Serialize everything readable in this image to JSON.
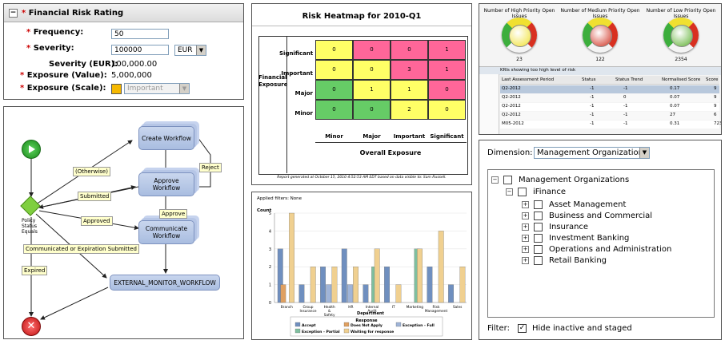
{
  "form": {
    "title": "Financial Risk Rating",
    "toggle": "−",
    "frequency_label": "Frequency:",
    "frequency_value": "50",
    "severity_label": "Severity:",
    "severity_value": "100000",
    "currency": "EUR",
    "severity_eur_label": "Severity (EUR):",
    "severity_eur_value": "100,000.00",
    "exposure_value_label": "Exposure (Value):",
    "exposure_value": "5,000,000",
    "exposure_scale_label": "Exposure (Scale):",
    "exposure_scale": "Important",
    "exposure_scale_color": "#f5b800"
  },
  "workflow": {
    "nodes": {
      "create": "Create Workflow",
      "approve": "Approve Workflow",
      "communicate": "Communicate Workflow",
      "monitor": "EXTERNAL_MONITOR_WORKFLOW",
      "decision": "Policy Status Equals"
    },
    "labels": {
      "otherwise": "(Otherwise)",
      "submitted": "Submitted",
      "approved": "Approved",
      "reject": "Reject",
      "approve": "Approve",
      "comm_or_exp": "Communicated or Expiration Submitted",
      "expired": "Expired"
    }
  },
  "heatmap": {
    "title": "Risk Heatmap for 2010-Q1",
    "row_axis": "Financial Exposure",
    "col_axis": "Overall Exposure",
    "rows": [
      "Significant",
      "Important",
      "Major",
      "Minor"
    ],
    "cols": [
      "Minor",
      "Major",
      "Important",
      "Significant"
    ],
    "values": [
      [
        0,
        0,
        0,
        1
      ],
      [
        0,
        0,
        3,
        1
      ],
      [
        0,
        1,
        1,
        0
      ],
      [
        0,
        0,
        2,
        0
      ]
    ],
    "cell_colors": [
      [
        "#ffff66",
        "#ff6699",
        "#ff6699",
        "#ff6699"
      ],
      [
        "#ffff66",
        "#ffff66",
        "#ff6699",
        "#ff6699"
      ],
      [
        "#66cc66",
        "#ffff66",
        "#ffff66",
        "#ff6699"
      ],
      [
        "#66cc66",
        "#66cc66",
        "#ffff66",
        "#ffff66"
      ]
    ],
    "footer": "Report generated at October 15, 2010 4:52:53 AM EDT based on data visible to: Sam Russell."
  },
  "chart_data": {
    "type": "bar",
    "title": "Applied filters: None",
    "xlabel": "Department",
    "ylabel": "Count",
    "ylim": [
      0,
      5
    ],
    "categories": [
      "Branch",
      "Group Insurance",
      "Health & Safety",
      "HR",
      "Internal Audit",
      "IT",
      "Marketing",
      "Risk Management",
      "Sales"
    ],
    "series": [
      {
        "name": "Accept",
        "color": "#6f8fbf",
        "values": [
          3,
          1,
          2,
          3,
          1,
          2,
          0,
          2,
          1
        ]
      },
      {
        "name": "Does Not Apply",
        "color": "#e0a060",
        "values": [
          1,
          0,
          0,
          0,
          0,
          0,
          0,
          0,
          0
        ]
      },
      {
        "name": "Exception - Full",
        "color": "#9fb4d8",
        "values": [
          0,
          0,
          1,
          1,
          0,
          0,
          0,
          0,
          0
        ]
      },
      {
        "name": "Exception - Partial",
        "color": "#7fbf9f",
        "values": [
          0,
          0,
          0,
          0,
          2,
          0,
          3,
          0,
          0
        ]
      },
      {
        "name": "Waiting for response",
        "color": "#f0d090",
        "values": [
          5,
          2,
          2,
          2,
          3,
          1,
          3,
          4,
          2
        ]
      }
    ],
    "legend_title": "Response"
  },
  "kri": {
    "gauges": [
      {
        "title": "Number of High Priority Open Issues",
        "value": "23",
        "color": "#f0e030"
      },
      {
        "title": "Number of Medium Priority Open Issues",
        "value": "122",
        "color": "#d03020"
      },
      {
        "title": "Number of Low Priority Open Issues",
        "value": "2354",
        "color": "#5cb030"
      }
    ],
    "table_caption": "KRIs showing too high level of risk",
    "headers": [
      "Last Assessment Period",
      "Status",
      "Status Trend",
      "Normalised Score",
      "Score"
    ],
    "rows": [
      [
        "Q2-2012",
        "-1",
        "-1",
        "0.17",
        "9"
      ],
      [
        "Q2-2012",
        "-1",
        "0",
        "0.07",
        "9"
      ],
      [
        "Q2-2012",
        "-1",
        "-1",
        "0.07",
        "9"
      ],
      [
        "Q2-2012",
        "-1",
        "-1",
        "27",
        "6"
      ],
      [
        "M05-2012",
        "-1",
        "-1",
        "0.31",
        "723"
      ]
    ]
  },
  "dimension": {
    "label": "Dimension:",
    "selected": "Management Organization",
    "root": "Management Organizations",
    "child": "iFinance",
    "items": [
      "Asset Management",
      "Business and Commercial",
      "Insurance",
      "Investment Banking",
      "Operations and Administration",
      "Retail Banking"
    ],
    "filter_label": "Filter:",
    "filter_option": "Hide inactive and staged"
  }
}
